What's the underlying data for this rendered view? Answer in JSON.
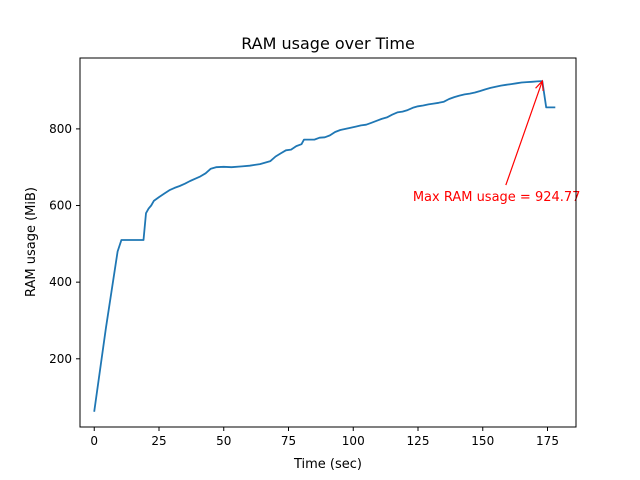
{
  "chart_data": {
    "type": "line",
    "title": "RAM usage over Time",
    "xlabel": "Time (sec)",
    "ylabel": "RAM usage (MiB)",
    "xlim": [
      -5.5,
      186
    ],
    "ylim": [
      22,
      985
    ],
    "xticks": [
      0,
      25,
      50,
      75,
      100,
      125,
      150,
      175
    ],
    "yticks": [
      200,
      400,
      600,
      800
    ],
    "grid": false,
    "line_color": "#1f77b4",
    "series": [
      {
        "x": [
          0,
          4.5,
          9,
          10.5,
          12,
          14,
          16,
          18,
          19,
          20,
          21,
          22,
          23,
          25,
          27,
          29,
          31,
          33,
          35,
          37,
          39,
          41,
          43,
          45,
          47,
          50,
          53,
          57,
          60,
          62,
          64,
          66,
          68,
          70,
          72,
          74,
          76,
          78,
          80,
          81,
          83,
          85,
          87,
          89,
          91,
          93,
          95,
          97,
          99,
          101,
          103,
          105,
          107,
          109,
          111,
          113,
          115,
          117,
          119,
          121,
          123,
          125,
          127,
          129,
          131,
          133,
          135,
          137,
          139,
          141,
          143,
          145,
          147,
          149,
          151,
          153,
          155,
          157,
          159,
          161,
          163,
          165,
          167,
          169,
          171,
          173,
          174.5,
          176,
          178
        ],
        "y": [
          62,
          280,
          480,
          510,
          510,
          510,
          510,
          510,
          510,
          580,
          592,
          600,
          612,
          622,
          631,
          640,
          646,
          651,
          657,
          664,
          670,
          676,
          684,
          696,
          700,
          701,
          700,
          702,
          704,
          706,
          708,
          712,
          716,
          728,
          736,
          744,
          746,
          755,
          760,
          772,
          772,
          772,
          777,
          778,
          783,
          792,
          797,
          800,
          803,
          806,
          809,
          811,
          816,
          821,
          826,
          830,
          837,
          843,
          845,
          849,
          855,
          859,
          861,
          864,
          866,
          868,
          871,
          878,
          883,
          887,
          890,
          892,
          895,
          899,
          903,
          907,
          910,
          913,
          915,
          917,
          919,
          921,
          922,
          923,
          924,
          924.77,
          856,
          856,
          856
        ]
      }
    ],
    "annotation": {
      "text": "Max RAM usage = 924.77",
      "color": "#ff0000",
      "point": [
        173,
        924.77
      ],
      "text_pos": [
        123,
        622
      ]
    }
  }
}
